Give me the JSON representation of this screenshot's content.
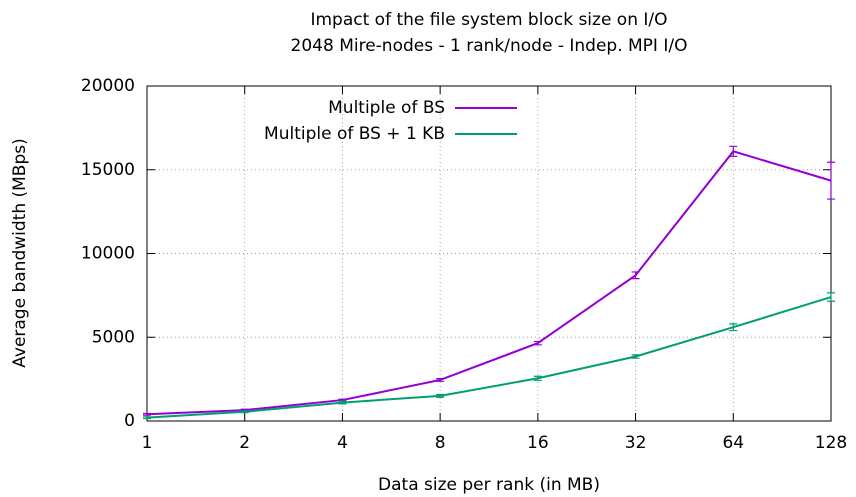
{
  "chart_data": {
    "type": "line",
    "title": "Impact of the file system block size on I/O",
    "subtitle": "2048 Mire-nodes - 1 rank/node - Indep. MPI I/O",
    "x_label": "Data size per rank (in MB)",
    "y_label": "Average bandwidth (MBps)",
    "x": [
      1,
      2,
      4,
      8,
      16,
      32,
      64,
      128
    ],
    "x_log_scale": true,
    "xlim": [
      1,
      128
    ],
    "xticks": [
      1,
      2,
      4,
      8,
      16,
      32,
      64,
      128
    ],
    "ylim": [
      0,
      20000
    ],
    "yticks": [
      0,
      5000,
      10000,
      15000,
      20000
    ],
    "grid": true,
    "legend": "top-center",
    "series": [
      {
        "name": "Multiple of BS",
        "color": "#9400d3",
        "values": [
          400,
          650,
          1250,
          2450,
          4650,
          8700,
          16100,
          14350
        ],
        "errors": [
          50,
          50,
          50,
          80,
          100,
          200,
          300,
          1100
        ]
      },
      {
        "name": "Multiple of BS + 1 KB",
        "color": "#009e73",
        "values": [
          200,
          550,
          1100,
          1500,
          2550,
          3850,
          5600,
          7400
        ],
        "errors": [
          50,
          50,
          80,
          80,
          120,
          100,
          200,
          250
        ]
      }
    ]
  }
}
